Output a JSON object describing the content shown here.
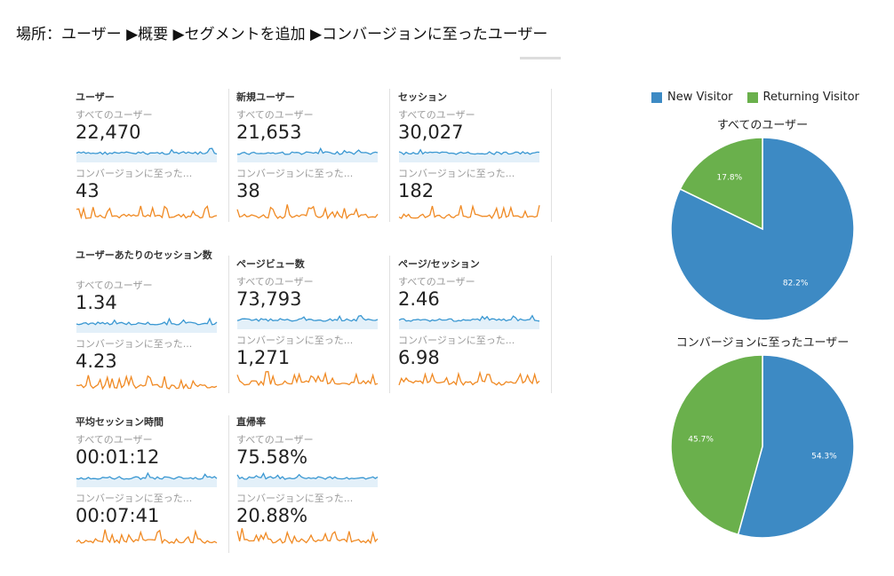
{
  "heading": "場所：ユーザー ▶概要 ▶セグメントを追加 ▶コンバージョンに至ったユーザー",
  "segments": {
    "all": "すべてのユーザー",
    "converted": "コンバージョンに至った..."
  },
  "colors": {
    "all_line": "#3b98d2",
    "all_fill": "#e3f0f9",
    "converted_line": "#f08a24",
    "new_visitor": "#3d8ac4",
    "returning_visitor": "#6ab04c"
  },
  "metrics": [
    {
      "title": "ユーザー",
      "all": "22,470",
      "converted": "43"
    },
    {
      "title": "新規ユーザー",
      "all": "21,653",
      "converted": "38"
    },
    {
      "title": "セッション",
      "all": "30,027",
      "converted": "182"
    },
    {
      "title": "ユーザーあたりのセッション数",
      "all": "1.34",
      "converted": "4.23"
    },
    {
      "title": "ページビュー数",
      "all": "73,793",
      "converted": "1,271"
    },
    {
      "title": "ページ/セッション",
      "all": "2.46",
      "converted": "6.98"
    },
    {
      "title": "平均セッション時間",
      "all": "00:01:12",
      "converted": "00:07:41"
    },
    {
      "title": "直帰率",
      "all": "75.58%",
      "converted": "20.88%"
    }
  ],
  "chart_data": [
    {
      "type": "pie",
      "title": "すべてのユーザー",
      "legend": [
        "New Visitor",
        "Returning Visitor"
      ],
      "values": [
        82.2,
        17.8
      ],
      "labels": [
        "82.2%",
        "17.8%"
      ]
    },
    {
      "type": "pie",
      "title": "コンバージョンに至ったユーザー",
      "legend": [
        "New Visitor",
        "Returning Visitor"
      ],
      "values": [
        54.3,
        45.7
      ],
      "labels": [
        "54.3%",
        "45.7%"
      ]
    }
  ]
}
